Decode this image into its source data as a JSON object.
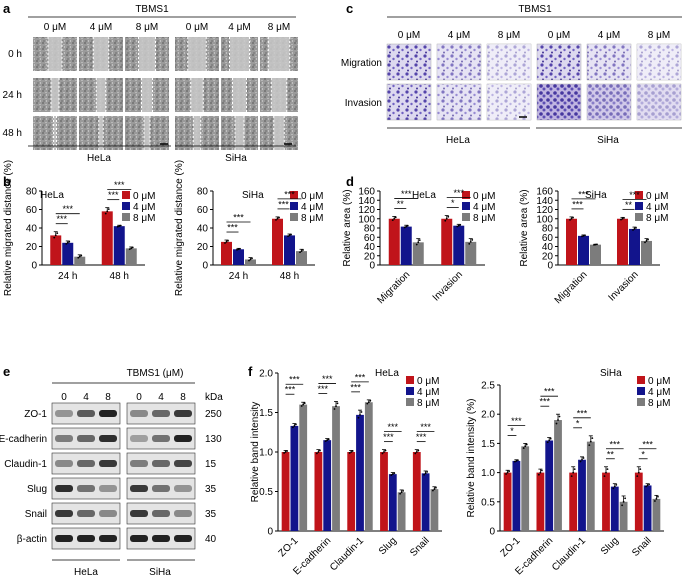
{
  "colors": {
    "c0": "#c0141a",
    "c4": "#12148c",
    "c8": "#7c7c7c"
  },
  "panel_a": {
    "label": "a",
    "title": "TBMS1",
    "concs": [
      "0 μM",
      "4 μM",
      "8 μM",
      "0 μM",
      "4 μM",
      "8 μM"
    ],
    "rows": [
      "0 h",
      "24 h",
      "48 h"
    ],
    "cell1": "HeLa",
    "cell2": "SiHa"
  },
  "panel_c": {
    "label": "c",
    "title": "TBMS1",
    "concs": [
      "0 μM",
      "4 μM",
      "8 μM",
      "0 μM",
      "4 μM",
      "8 μM"
    ],
    "rows": [
      "Migration",
      "Invasion"
    ],
    "cell1": "HeLa",
    "cell2": "SiHa"
  },
  "panel_b": {
    "label": "b"
  },
  "panel_d": {
    "label": "d"
  },
  "panel_f": {
    "label": "f"
  },
  "panel_e": {
    "label": "e",
    "title": "TBMS1 (μM)",
    "kda_label": "kDa",
    "concs": [
      "0",
      "4",
      "8",
      "0",
      "4",
      "8"
    ],
    "proteins": [
      "ZO-1",
      "E-cadherin",
      "Claudin-1",
      "Slug",
      "Snail",
      "β-actin"
    ],
    "kda": [
      "250",
      "130",
      "15",
      "35",
      "35",
      "40"
    ],
    "cell1": "HeLa",
    "cell2": "SiHa"
  },
  "chart_data": [
    {
      "id": "b1",
      "type": "bar",
      "title": "HeLa",
      "ylabel": "Relative migrated distance (%)",
      "ylim": [
        0,
        80
      ],
      "yticks": [
        0,
        20,
        40,
        60,
        80
      ],
      "categories": [
        "24 h",
        "48 h"
      ],
      "legend": [
        "0 μM",
        "4 μM",
        "8 μM"
      ],
      "series": [
        {
          "name": "0 μM",
          "values": [
            32,
            58
          ],
          "err": [
            4,
            4
          ]
        },
        {
          "name": "4 μM",
          "values": [
            24,
            42
          ],
          "err": [
            2,
            1
          ]
        },
        {
          "name": "8 μM",
          "values": [
            9,
            18
          ],
          "err": [
            2,
            1.5
          ]
        }
      ],
      "sig": [
        "***",
        "***",
        "***",
        "***"
      ]
    },
    {
      "id": "b2",
      "type": "bar",
      "title": "SiHa",
      "ylabel": "Relative migrated distance (%)",
      "ylim": [
        0,
        80
      ],
      "yticks": [
        0,
        20,
        40,
        60,
        80
      ],
      "categories": [
        "24 h",
        "48 h"
      ],
      "legend": [
        "0 μM",
        "4 μM",
        "8 μM"
      ],
      "series": [
        {
          "name": "0 μM",
          "values": [
            25,
            50
          ],
          "err": [
            2,
            2
          ]
        },
        {
          "name": "4 μM",
          "values": [
            17,
            32
          ],
          "err": [
            1,
            1.5
          ]
        },
        {
          "name": "8 μM",
          "values": [
            6,
            15
          ],
          "err": [
            2,
            2
          ]
        }
      ],
      "sig": [
        "***",
        "***",
        "***",
        "***"
      ]
    },
    {
      "id": "d1",
      "type": "bar",
      "title": "HeLa",
      "ylabel": "Relative area (%)",
      "ylim": [
        0,
        160
      ],
      "yticks": [
        0,
        20,
        40,
        60,
        80,
        100,
        120,
        140,
        160
      ],
      "categories": [
        "Migration",
        "Invasion"
      ],
      "legend": [
        "0 μM",
        "4 μM",
        "8 μM"
      ],
      "series": [
        {
          "name": "0 μM",
          "values": [
            100,
            100
          ],
          "err": [
            5,
            7
          ]
        },
        {
          "name": "4 μM",
          "values": [
            83,
            85
          ],
          "err": [
            3,
            3
          ]
        },
        {
          "name": "8 μM",
          "values": [
            49,
            50
          ],
          "err": [
            8,
            7
          ]
        }
      ],
      "sig": [
        "**",
        "***",
        "*",
        "***"
      ]
    },
    {
      "id": "d2",
      "type": "bar",
      "title": "SiHa",
      "ylabel": "Relative area (%)",
      "ylim": [
        0,
        160
      ],
      "yticks": [
        0,
        20,
        40,
        60,
        80,
        100,
        120,
        140,
        160
      ],
      "categories": [
        "Migration",
        "Invasion"
      ],
      "legend": [
        "0 μM",
        "4 μM",
        "8 μM"
      ],
      "series": [
        {
          "name": "0 μM",
          "values": [
            100,
            100
          ],
          "err": [
            4,
            3
          ]
        },
        {
          "name": "4 μM",
          "values": [
            63,
            78
          ],
          "err": [
            2,
            4
          ]
        },
        {
          "name": "8 μM",
          "values": [
            44,
            52
          ],
          "err": [
            1,
            5
          ]
        }
      ],
      "sig": [
        "***",
        "***",
        "**",
        "***"
      ]
    },
    {
      "id": "f1",
      "type": "bar",
      "title": "HeLa",
      "ylabel": "Relative band intensity",
      "ylim": [
        0,
        2.0
      ],
      "yticks": [
        0,
        0.5,
        1.0,
        1.5,
        2.0
      ],
      "ytick_labels": [
        "0",
        "0.5",
        "1.0",
        "1.5",
        "2.0"
      ],
      "categories": [
        "ZO-1",
        "E-cadherin",
        "Claudin-1",
        "Slug",
        "Snail"
      ],
      "legend": [
        "0 μM",
        "4 μM",
        "8 μM"
      ],
      "series": [
        {
          "name": "0 μM",
          "values": [
            1.0,
            1.0,
            1.0,
            1.0,
            1.0
          ],
          "err": [
            0.02,
            0.03,
            0.02,
            0.03,
            0.03
          ]
        },
        {
          "name": "4 μM",
          "values": [
            1.33,
            1.15,
            1.47,
            0.72,
            0.73
          ],
          "err": [
            0.03,
            0.02,
            0.06,
            0.02,
            0.03
          ]
        },
        {
          "name": "8 μM",
          "values": [
            1.6,
            1.58,
            1.63,
            0.49,
            0.53
          ],
          "err": [
            0.03,
            0.06,
            0.03,
            0.03,
            0.03
          ]
        }
      ],
      "sig": [
        "***",
        "***",
        "***",
        "***",
        "***",
        "***",
        "***",
        "***",
        "***",
        "***"
      ]
    },
    {
      "id": "f2",
      "type": "bar",
      "title": "SiHa",
      "ylabel": "Relative band intensity (%)",
      "ylim": [
        0,
        2.5
      ],
      "yticks": [
        0,
        0.5,
        1.0,
        1.5,
        2.0,
        2.5
      ],
      "ytick_labels": [
        "0",
        "0.5",
        "1.0",
        "1.5",
        "2.0",
        "2.5"
      ],
      "categories": [
        "ZO-1",
        "E-cadherin",
        "Claudin-1",
        "Slug",
        "Snail"
      ],
      "legend": [
        "0 μM",
        "4 μM",
        "8 μM"
      ],
      "series": [
        {
          "name": "0 μM",
          "values": [
            1.0,
            1.0,
            1.0,
            1.0,
            1.0
          ],
          "err": [
            0.04,
            0.06,
            0.1,
            0.1,
            0.1
          ]
        },
        {
          "name": "4 μM",
          "values": [
            1.2,
            1.55,
            1.22,
            0.76,
            0.78
          ],
          "err": [
            0.02,
            0.05,
            0.05,
            0.05,
            0.03
          ]
        },
        {
          "name": "8 μM",
          "values": [
            1.45,
            1.9,
            1.53,
            0.5,
            0.55
          ],
          "err": [
            0.05,
            0.1,
            0.1,
            0.1,
            0.06
          ]
        }
      ],
      "sig": [
        "*",
        "***",
        "***",
        "***",
        "*",
        "***",
        "**",
        "***",
        "*",
        "***"
      ]
    }
  ]
}
